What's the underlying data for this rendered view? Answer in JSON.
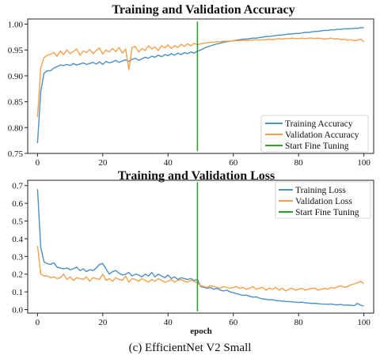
{
  "caption": "(c) EfficientNet V2 Small",
  "chart_data": [
    {
      "type": "line",
      "title": "Training and Validation Accuracy",
      "xlabel": "",
      "ylabel": "",
      "xlim": [
        -3,
        103
      ],
      "ylim": [
        0.75,
        1.01
      ],
      "xticks": [
        0,
        20,
        40,
        60,
        80,
        100
      ],
      "yticks": [
        0.75,
        0.8,
        0.85,
        0.9,
        0.95,
        1.0
      ],
      "ytick_labels": [
        "0.75",
        "0.80",
        "0.85",
        "0.90",
        "0.95",
        "1.00"
      ],
      "legend_position": "lower-right",
      "grid": false,
      "series": [
        {
          "name": "Training Accuracy",
          "color": "#4e8fc4",
          "x": [
            0,
            1,
            2,
            3,
            4,
            5,
            6,
            7,
            8,
            9,
            10,
            11,
            12,
            13,
            14,
            15,
            16,
            17,
            18,
            19,
            20,
            21,
            22,
            23,
            24,
            25,
            26,
            27,
            28,
            29,
            30,
            31,
            32,
            33,
            34,
            35,
            36,
            37,
            38,
            39,
            40,
            41,
            42,
            43,
            44,
            45,
            46,
            47,
            48,
            49,
            50,
            51,
            52,
            53,
            54,
            55,
            56,
            57,
            58,
            59,
            60,
            61,
            62,
            63,
            64,
            65,
            66,
            67,
            68,
            69,
            70,
            71,
            72,
            73,
            74,
            75,
            76,
            77,
            78,
            79,
            80,
            81,
            82,
            83,
            84,
            85,
            86,
            87,
            88,
            89,
            90,
            91,
            92,
            93,
            94,
            95,
            96,
            97,
            98,
            99,
            100
          ],
          "y": [
            0.77,
            0.87,
            0.905,
            0.91,
            0.91,
            0.915,
            0.918,
            0.921,
            0.92,
            0.922,
            0.92,
            0.924,
            0.921,
            0.923,
            0.925,
            0.922,
            0.924,
            0.926,
            0.923,
            0.927,
            0.922,
            0.928,
            0.925,
            0.927,
            0.93,
            0.926,
            0.929,
            0.931,
            0.928,
            0.932,
            0.934,
            0.93,
            0.933,
            0.936,
            0.934,
            0.938,
            0.936,
            0.94,
            0.937,
            0.941,
            0.939,
            0.943,
            0.94,
            0.944,
            0.941,
            0.945,
            0.943,
            0.946,
            0.944,
            0.948,
            0.95,
            0.953,
            0.956,
            0.958,
            0.96,
            0.962,
            0.963,
            0.965,
            0.966,
            0.967,
            0.968,
            0.969,
            0.97,
            0.971,
            0.971,
            0.972,
            0.973,
            0.973,
            0.974,
            0.975,
            0.976,
            0.976,
            0.977,
            0.978,
            0.979,
            0.979,
            0.98,
            0.981,
            0.981,
            0.982,
            0.982,
            0.983,
            0.984,
            0.984,
            0.985,
            0.986,
            0.986,
            0.987,
            0.988,
            0.988,
            0.989,
            0.989,
            0.99,
            0.99,
            0.991,
            0.991,
            0.991,
            0.992,
            0.992,
            0.993,
            0.993
          ]
        },
        {
          "name": "Validation Accuracy",
          "color": "#f5a04a",
          "x": [
            0,
            1,
            2,
            3,
            4,
            5,
            6,
            7,
            8,
            9,
            10,
            11,
            12,
            13,
            14,
            15,
            16,
            17,
            18,
            19,
            20,
            21,
            22,
            23,
            24,
            25,
            26,
            27,
            28,
            29,
            30,
            31,
            32,
            33,
            34,
            35,
            36,
            37,
            38,
            39,
            40,
            41,
            42,
            43,
            44,
            45,
            46,
            47,
            48,
            49,
            50,
            51,
            52,
            53,
            54,
            55,
            56,
            57,
            58,
            59,
            60,
            61,
            62,
            63,
            64,
            65,
            66,
            67,
            68,
            69,
            70,
            71,
            72,
            73,
            74,
            75,
            76,
            77,
            78,
            79,
            80,
            81,
            82,
            83,
            84,
            85,
            86,
            87,
            88,
            89,
            90,
            91,
            92,
            93,
            94,
            95,
            96,
            97,
            98,
            99,
            100
          ],
          "y": [
            0.82,
            0.915,
            0.935,
            0.94,
            0.942,
            0.945,
            0.938,
            0.948,
            0.941,
            0.95,
            0.943,
            0.947,
            0.952,
            0.94,
            0.948,
            0.945,
            0.951,
            0.943,
            0.949,
            0.954,
            0.942,
            0.95,
            0.946,
            0.953,
            0.947,
            0.955,
            0.944,
            0.952,
            0.912,
            0.955,
            0.957,
            0.946,
            0.953,
            0.949,
            0.958,
            0.952,
            0.956,
            0.949,
            0.958,
            0.954,
            0.96,
            0.953,
            0.958,
            0.955,
            0.961,
            0.957,
            0.962,
            0.958,
            0.963,
            0.96,
            0.962,
            0.963,
            0.964,
            0.965,
            0.965,
            0.966,
            0.966,
            0.967,
            0.967,
            0.967,
            0.968,
            0.968,
            0.968,
            0.969,
            0.968,
            0.969,
            0.969,
            0.97,
            0.969,
            0.97,
            0.97,
            0.971,
            0.97,
            0.971,
            0.972,
            0.971,
            0.972,
            0.972,
            0.973,
            0.972,
            0.972,
            0.973,
            0.972,
            0.973,
            0.973,
            0.972,
            0.973,
            0.972,
            0.971,
            0.972,
            0.973,
            0.971,
            0.972,
            0.97,
            0.971,
            0.969,
            0.97,
            0.968,
            0.969,
            0.971,
            0.966
          ]
        },
        {
          "name": "Start Fine Tuning",
          "color": "#2ca02c",
          "x": [
            49,
            49
          ],
          "y": [
            0.755,
            1.005
          ]
        }
      ]
    },
    {
      "type": "line",
      "title": "Training and Validation Loss",
      "xlabel": "epoch",
      "ylabel": "",
      "xlim": [
        -3,
        103
      ],
      "ylim": [
        -0.02,
        0.73
      ],
      "xticks": [
        0,
        20,
        40,
        60,
        80,
        100
      ],
      "yticks": [
        0.0,
        0.1,
        0.2,
        0.3,
        0.4,
        0.5,
        0.6,
        0.7
      ],
      "ytick_labels": [
        "0.0",
        "0.1",
        "0.2",
        "0.3",
        "0.4",
        "0.5",
        "0.6",
        "0.7"
      ],
      "legend_position": "upper-right",
      "grid": false,
      "series": [
        {
          "name": "Training Loss",
          "color": "#4e8fc4",
          "x": [
            0,
            1,
            2,
            3,
            4,
            5,
            6,
            7,
            8,
            9,
            10,
            11,
            12,
            13,
            14,
            15,
            16,
            17,
            18,
            19,
            20,
            21,
            22,
            23,
            24,
            25,
            26,
            27,
            28,
            29,
            30,
            31,
            32,
            33,
            34,
            35,
            36,
            37,
            38,
            39,
            40,
            41,
            42,
            43,
            44,
            45,
            46,
            47,
            48,
            49,
            50,
            51,
            52,
            53,
            54,
            55,
            56,
            57,
            58,
            59,
            60,
            61,
            62,
            63,
            64,
            65,
            66,
            67,
            68,
            69,
            70,
            71,
            72,
            73,
            74,
            75,
            76,
            77,
            78,
            79,
            80,
            81,
            82,
            83,
            84,
            85,
            86,
            87,
            88,
            89,
            90,
            91,
            92,
            93,
            94,
            95,
            96,
            97,
            98,
            99,
            100
          ],
          "y": [
            0.68,
            0.35,
            0.27,
            0.26,
            0.255,
            0.265,
            0.24,
            0.235,
            0.23,
            0.235,
            0.225,
            0.23,
            0.24,
            0.22,
            0.23,
            0.215,
            0.225,
            0.22,
            0.235,
            0.255,
            0.26,
            0.23,
            0.2,
            0.215,
            0.22,
            0.205,
            0.195,
            0.2,
            0.21,
            0.19,
            0.2,
            0.195,
            0.185,
            0.2,
            0.19,
            0.21,
            0.185,
            0.2,
            0.19,
            0.18,
            0.195,
            0.175,
            0.185,
            0.17,
            0.18,
            0.175,
            0.17,
            0.175,
            0.165,
            0.17,
            0.13,
            0.125,
            0.12,
            0.125,
            0.115,
            0.12,
            0.11,
            0.105,
            0.11,
            0.1,
            0.095,
            0.09,
            0.085,
            0.08,
            0.082,
            0.075,
            0.07,
            0.072,
            0.065,
            0.06,
            0.058,
            0.055,
            0.056,
            0.052,
            0.05,
            0.048,
            0.046,
            0.045,
            0.044,
            0.042,
            0.04,
            0.042,
            0.038,
            0.037,
            0.035,
            0.036,
            0.033,
            0.032,
            0.031,
            0.03,
            0.032,
            0.028,
            0.027,
            0.029,
            0.025,
            0.026,
            0.024,
            0.022,
            0.035,
            0.025,
            0.02
          ]
        },
        {
          "name": "Validation Loss",
          "color": "#f5a04a",
          "x": [
            0,
            1,
            2,
            3,
            4,
            5,
            6,
            7,
            8,
            9,
            10,
            11,
            12,
            13,
            14,
            15,
            16,
            17,
            18,
            19,
            20,
            21,
            22,
            23,
            24,
            25,
            26,
            27,
            28,
            29,
            30,
            31,
            32,
            33,
            34,
            35,
            36,
            37,
            38,
            39,
            40,
            41,
            42,
            43,
            44,
            45,
            46,
            47,
            48,
            49,
            50,
            51,
            52,
            53,
            54,
            55,
            56,
            57,
            58,
            59,
            60,
            61,
            62,
            63,
            64,
            65,
            66,
            67,
            68,
            69,
            70,
            71,
            72,
            73,
            74,
            75,
            76,
            77,
            78,
            79,
            80,
            81,
            82,
            83,
            84,
            85,
            86,
            87,
            88,
            89,
            90,
            91,
            92,
            93,
            94,
            95,
            96,
            97,
            98,
            99,
            100
          ],
          "y": [
            0.36,
            0.2,
            0.19,
            0.19,
            0.18,
            0.185,
            0.175,
            0.18,
            0.2,
            0.17,
            0.185,
            0.165,
            0.18,
            0.175,
            0.17,
            0.185,
            0.16,
            0.18,
            0.175,
            0.17,
            0.2,
            0.165,
            0.175,
            0.16,
            0.18,
            0.17,
            0.165,
            0.19,
            0.155,
            0.175,
            0.17,
            0.16,
            0.175,
            0.165,
            0.155,
            0.17,
            0.16,
            0.175,
            0.165,
            0.155,
            0.16,
            0.17,
            0.155,
            0.165,
            0.17,
            0.16,
            0.155,
            0.165,
            0.16,
            0.15,
            0.135,
            0.13,
            0.125,
            0.135,
            0.13,
            0.125,
            0.12,
            0.13,
            0.125,
            0.12,
            0.125,
            0.13,
            0.12,
            0.125,
            0.115,
            0.12,
            0.13,
            0.115,
            0.12,
            0.125,
            0.11,
            0.12,
            0.115,
            0.125,
            0.11,
            0.12,
            0.105,
            0.115,
            0.12,
            0.11,
            0.115,
            0.12,
            0.11,
            0.115,
            0.12,
            0.12,
            0.11,
            0.115,
            0.12,
            0.115,
            0.125,
            0.12,
            0.13,
            0.135,
            0.125,
            0.13,
            0.14,
            0.145,
            0.15,
            0.16,
            0.145
          ]
        },
        {
          "name": "Start Fine Tuning",
          "color": "#2ca02c",
          "x": [
            49,
            49
          ],
          "y": [
            -0.01,
            0.72
          ]
        }
      ]
    }
  ]
}
